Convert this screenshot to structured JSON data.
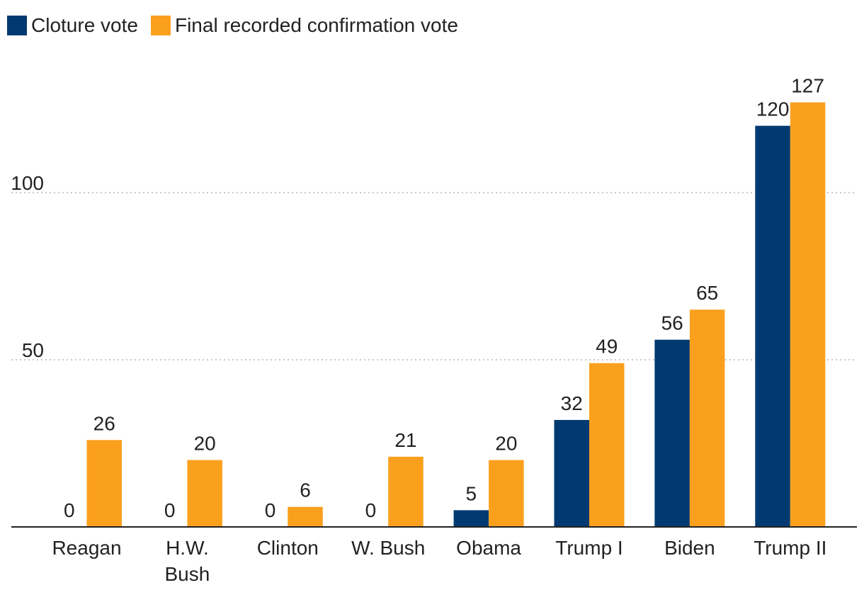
{
  "chart_data": {
    "type": "bar",
    "title": "",
    "xlabel": "",
    "ylabel": "",
    "categories": [
      "Reagan",
      "H.W.\nBush",
      "Clinton",
      "W. Bush",
      "Obama",
      "Trump I",
      "Biden",
      "Trump II"
    ],
    "series": [
      {
        "name": "Cloture vote",
        "color": "#003A70",
        "values": [
          0,
          0,
          0,
          0,
          5,
          32,
          56,
          120
        ]
      },
      {
        "name": "Final recorded confirmation vote",
        "color": "#FBA01D",
        "values": [
          26,
          20,
          6,
          21,
          20,
          49,
          65,
          127
        ]
      }
    ],
    "yticks": [
      50,
      100
    ],
    "ylim": [
      0,
      140
    ],
    "grid": "horizontal-dotted",
    "legend_position": "top-left"
  }
}
